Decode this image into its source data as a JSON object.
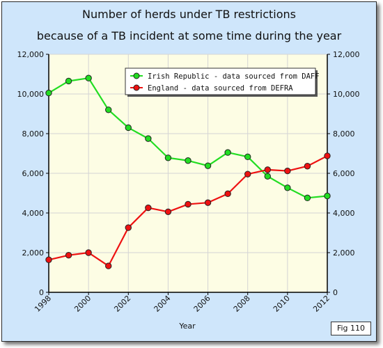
{
  "chart_data": {
    "type": "line",
    "title": "Number of herds under TB restrictions",
    "subtitle": "because of a TB incident at some time during the year",
    "xlabel": "Year",
    "ylabel": "",
    "xlim": [
      1998,
      2012
    ],
    "ylim": [
      0,
      12000
    ],
    "x_ticks": [
      "1998",
      "2000",
      "2002",
      "2004",
      "2006",
      "2008",
      "2010",
      "2012"
    ],
    "y_ticks": [
      "0",
      "2,000",
      "4,000",
      "6,000",
      "8,000",
      "10,000",
      "12,000"
    ],
    "grid": true,
    "legend_position": "top-right",
    "x": [
      1998,
      1999,
      2000,
      2001,
      2002,
      2003,
      2004,
      2005,
      2006,
      2007,
      2008,
      2009,
      2010,
      2011,
      2012
    ],
    "series": [
      {
        "name": "Irish Republic - data sourced from DAFF",
        "color": "#22dd22",
        "values": [
          10050,
          10650,
          10800,
          9200,
          8300,
          7750,
          6780,
          6640,
          6380,
          7050,
          6830,
          5850,
          5270,
          4760,
          4860
        ]
      },
      {
        "name": "England - data sourced from DEFRA",
        "color": "#ee1111",
        "values": [
          1640,
          1870,
          2000,
          1330,
          3260,
          4260,
          4060,
          4440,
          4520,
          4970,
          5960,
          6180,
          6120,
          6360,
          6880
        ]
      }
    ],
    "figure_label": "Fig 110"
  }
}
